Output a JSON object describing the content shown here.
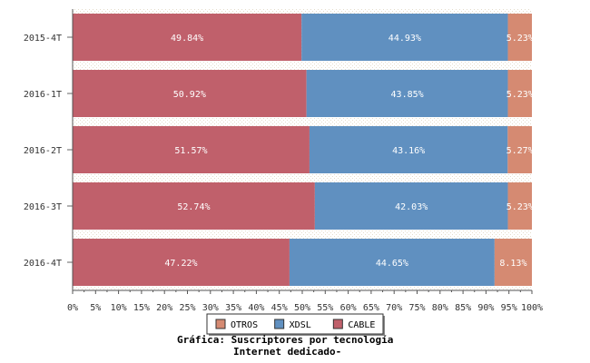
{
  "chart_data": {
    "type": "bar",
    "orientation": "horizontal",
    "stacked": true,
    "categories": [
      "2015-4T",
      "2016-1T",
      "2016-2T",
      "2016-3T",
      "2016-4T"
    ],
    "series": [
      {
        "name": "CABLE",
        "color": "#c0606b",
        "values": [
          49.84,
          50.92,
          51.57,
          52.74,
          47.22
        ],
        "labels": [
          "49.84%",
          "50.92%",
          "51.57%",
          "52.74%",
          "47.22%"
        ]
      },
      {
        "name": "XDSL",
        "color": "#6090c0",
        "values": [
          44.93,
          43.85,
          43.16,
          42.03,
          44.65
        ],
        "labels": [
          "44.93%",
          "43.85%",
          "43.16%",
          "42.03%",
          "44.65%"
        ]
      },
      {
        "name": "OTROS",
        "color": "#d58a72",
        "values": [
          5.23,
          5.23,
          5.27,
          5.23,
          8.13
        ],
        "labels": [
          "5.23%",
          "5.23%",
          "5.27%",
          "5.23%",
          "8.13%"
        ]
      }
    ],
    "xlim": [
      0,
      100
    ],
    "xticks": [
      "0%",
      "5%",
      "10%",
      "15%",
      "20%",
      "25%",
      "30%",
      "35%",
      "40%",
      "45%",
      "50%",
      "55%",
      "60%",
      "65%",
      "70%",
      "75%",
      "80%",
      "85%",
      "90%",
      "95%",
      "100%"
    ],
    "legend": {
      "placement": "bottom",
      "order": [
        "OTROS",
        "XDSL",
        "CABLE"
      ]
    },
    "title_lines": [
      "Gráfica: Suscriptores por tecnología",
      "Internet dedicado-"
    ]
  }
}
